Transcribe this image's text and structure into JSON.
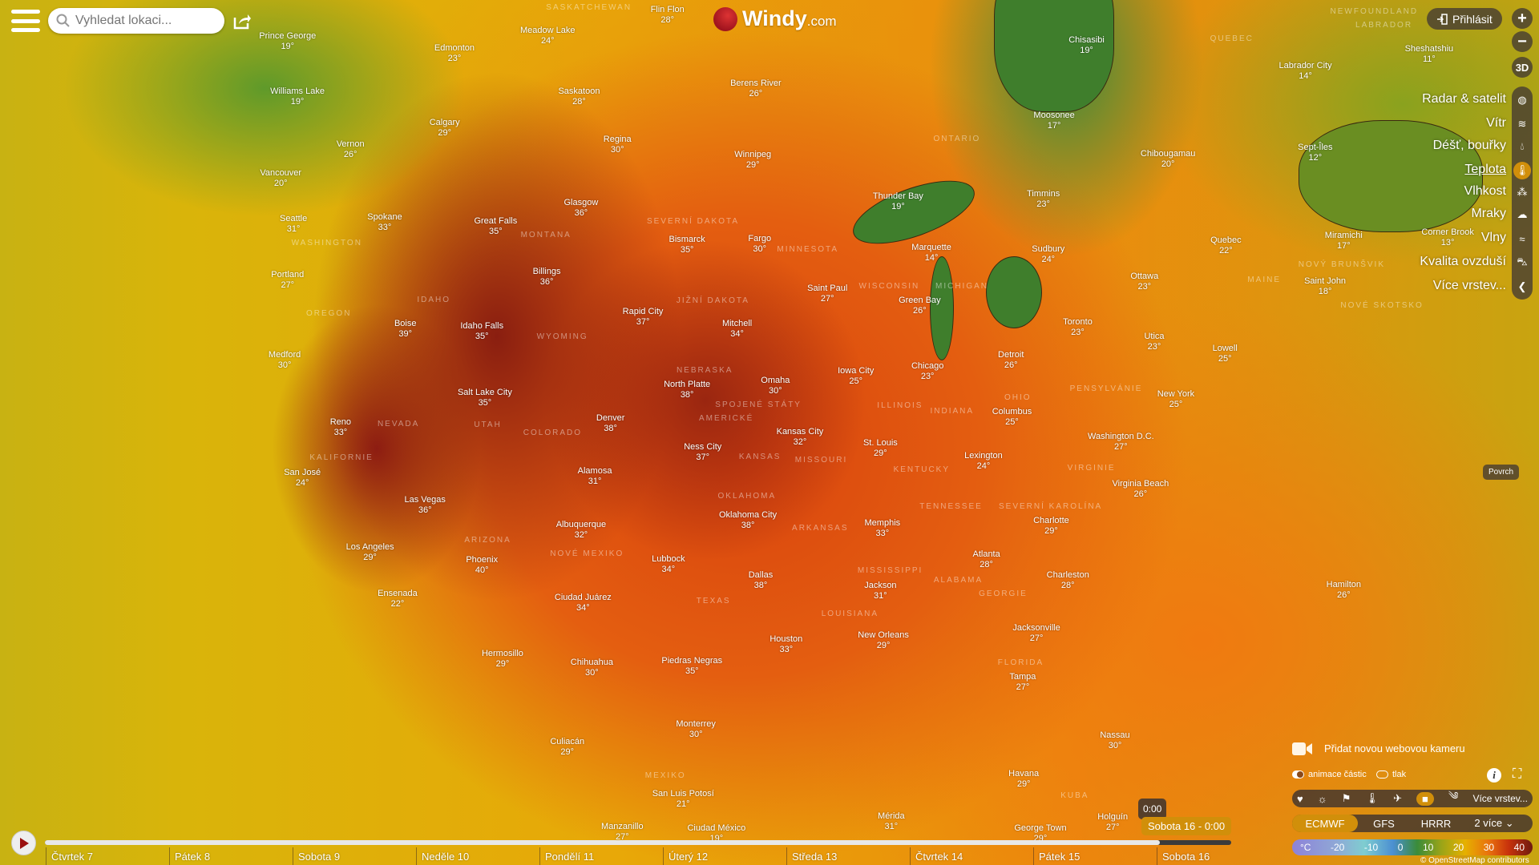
{
  "header": {
    "search_placeholder": "Vyhledat lokaci...",
    "logo_main": "Windy",
    "logo_suffix": ".com",
    "login_label": "Přihlásit"
  },
  "controls": {
    "zoom_in": "+",
    "zoom_out": "−",
    "three_d": "3D",
    "povrch": "Povrch"
  },
  "layers": [
    {
      "label": "Radar & satelit",
      "icon": "globe-icon"
    },
    {
      "label": "Vítr",
      "icon": "wind-icon"
    },
    {
      "label": "Déšť, bouřky",
      "icon": "drop-icon"
    },
    {
      "label": "Teplota",
      "icon": "thermometer-icon",
      "active": true
    },
    {
      "label": "Vlhkost",
      "icon": "humidity-icon"
    },
    {
      "label": "Mraky",
      "icon": "cloud-icon"
    },
    {
      "label": "Vlny",
      "icon": "waves-icon"
    },
    {
      "label": "Kvalita ovzduší",
      "icon": "car-icon"
    },
    {
      "label": "Více vrstev...",
      "icon": "chevron-left-icon"
    }
  ],
  "bottom_right": {
    "add_webcam": "Přidat novou webovou kameru",
    "toggle_particles": "animace částic",
    "toggle_pressure": "tlak",
    "more_layers": "Více vrstev...",
    "models": [
      "ECMWF",
      "GFS",
      "HRRR"
    ],
    "models_more": "2 více",
    "active_model": "ECMWF",
    "legend_unit": "°C",
    "legend_ticks": [
      "-20",
      "-10",
      "0",
      "10",
      "20",
      "30",
      "40"
    ],
    "credit": "© OpenStreetMap contributors"
  },
  "timeline": {
    "days": [
      "Čtvrtek 7",
      "Pátek 8",
      "Sobota 9",
      "Neděle 10",
      "Pondělí 11",
      "Úterý 12",
      "Středa 13",
      "Čtvrtek 14",
      "Pátek 15",
      "Sobota 16"
    ],
    "hour_tooltip": "0:00",
    "current_label": "Sobota 16 - 0:00",
    "progress_percent": 94
  },
  "colors": {
    "accent": "#d18f0a",
    "panel": "#463b32",
    "logo_red": "#a0141e"
  },
  "regions": [
    "SASKATCHEWAN",
    "ONTARIO",
    "QUEBEC",
    "NEWFOUNDLAND",
    "LABRADOR",
    "WASHINGTON",
    "MONTANA",
    "SEVERNÍ DAKOTA",
    "JIŽNÍ DAKOTA",
    "MINNESOTA",
    "WISCONSIN",
    "MICHIGAN",
    "IDAHO",
    "OREGON",
    "WYOMING",
    "NEBRASKA",
    "SPOJENÉ STÁTY",
    "AMERICKÉ",
    "NEVADA",
    "UTAH",
    "COLORADO",
    "KANSAS",
    "MISSOURI",
    "ILLINOIS",
    "INDIANA",
    "OHIO",
    "KALIFORNIE",
    "ARIZONA",
    "NOVÉ MEXIKO",
    "OKLAHOMA",
    "ARKANSAS",
    "TENNESSEE",
    "TEXAS",
    "LOUISIANA",
    "MISSISSIPPI",
    "ALABAMA",
    "GEORGIE",
    "FLORIDA",
    "MEXIKO",
    "KUBA",
    "PENSYLVÁNIE",
    "KENTUCKY",
    "VIRGINIE",
    "SEVERNÍ KAROLÍNA",
    "MAINE",
    "NOVÝ BRUNŠVIK",
    "NOVÉ SKOTSKO"
  ],
  "cities": [
    {
      "name": "Prince George",
      "temp": "19°"
    },
    {
      "name": "Edmonton",
      "temp": "23°"
    },
    {
      "name": "Meadow Lake",
      "temp": "24°"
    },
    {
      "name": "Flin Flon",
      "temp": "28°"
    },
    {
      "name": "Williams Lake",
      "temp": "19°"
    },
    {
      "name": "Saskatoon",
      "temp": "28°"
    },
    {
      "name": "Calgary",
      "temp": "29°"
    },
    {
      "name": "Regina",
      "temp": "30°"
    },
    {
      "name": "Vernon",
      "temp": "26°"
    },
    {
      "name": "Berens River",
      "temp": "26°"
    },
    {
      "name": "Winnipeg",
      "temp": "29°"
    },
    {
      "name": "Vancouver",
      "temp": "20°"
    },
    {
      "name": "Seattle",
      "temp": "31°"
    },
    {
      "name": "Spokane",
      "temp": "33°"
    },
    {
      "name": "Great Falls",
      "temp": "35°"
    },
    {
      "name": "Glasgow",
      "temp": "36°"
    },
    {
      "name": "Bismarck",
      "temp": "35°"
    },
    {
      "name": "Fargo",
      "temp": "30°"
    },
    {
      "name": "Thunder Bay",
      "temp": "19°"
    },
    {
      "name": "Marquette",
      "temp": "14°"
    },
    {
      "name": "Timmins",
      "temp": "23°"
    },
    {
      "name": "Sudbury",
      "temp": "24°"
    },
    {
      "name": "Ottawa",
      "temp": "23°"
    },
    {
      "name": "Chibougamau",
      "temp": "20°"
    },
    {
      "name": "Chisasibi",
      "temp": "19°"
    },
    {
      "name": "Moosonee",
      "temp": "17°"
    },
    {
      "name": "Labrador City",
      "temp": "14°"
    },
    {
      "name": "Sheshatshiu",
      "temp": "11°"
    },
    {
      "name": "Sept-Îles",
      "temp": "12°"
    },
    {
      "name": "Corner Brook",
      "temp": "13°"
    },
    {
      "name": "Miramichi",
      "temp": "17°"
    },
    {
      "name": "Saint John",
      "temp": "18°"
    },
    {
      "name": "Quebec",
      "temp": "22°"
    },
    {
      "name": "Portland",
      "temp": "27°"
    },
    {
      "name": "Billings",
      "temp": "36°"
    },
    {
      "name": "Rapid City",
      "temp": "37°"
    },
    {
      "name": "Mitchell",
      "temp": "34°"
    },
    {
      "name": "Saint Paul",
      "temp": "27°"
    },
    {
      "name": "Green Bay",
      "temp": "26°"
    },
    {
      "name": "Toronto",
      "temp": "23°"
    },
    {
      "name": "Utica",
      "temp": "23°"
    },
    {
      "name": "Lowell",
      "temp": "25°"
    },
    {
      "name": "Boise",
      "temp": "39°"
    },
    {
      "name": "Idaho Falls",
      "temp": "35°"
    },
    {
      "name": "Medford",
      "temp": "30°"
    },
    {
      "name": "Chicago",
      "temp": "23°"
    },
    {
      "name": "Detroit",
      "temp": "26°"
    },
    {
      "name": "Iowa City",
      "temp": "25°"
    },
    {
      "name": "North Platte",
      "temp": "38°"
    },
    {
      "name": "Omaha",
      "temp": "30°"
    },
    {
      "name": "New York",
      "temp": "25°"
    },
    {
      "name": "Salt Lake City",
      "temp": "35°"
    },
    {
      "name": "Reno",
      "temp": "33°"
    },
    {
      "name": "Denver",
      "temp": "38°"
    },
    {
      "name": "Kansas City",
      "temp": "32°"
    },
    {
      "name": "St. Louis",
      "temp": "29°"
    },
    {
      "name": "Columbus",
      "temp": "25°"
    },
    {
      "name": "Washington D.C.",
      "temp": "27°"
    },
    {
      "name": "Lexington",
      "temp": "24°"
    },
    {
      "name": "Ness City",
      "temp": "37°"
    },
    {
      "name": "Alamosa",
      "temp": "31°"
    },
    {
      "name": "San José",
      "temp": "24°"
    },
    {
      "name": "Las Vegas",
      "temp": "36°"
    },
    {
      "name": "Virginia Beach",
      "temp": "26°"
    },
    {
      "name": "Memphis",
      "temp": "33°"
    },
    {
      "name": "Oklahoma City",
      "temp": "38°"
    },
    {
      "name": "Albuquerque",
      "temp": "32°"
    },
    {
      "name": "Charlotte",
      "temp": "29°"
    },
    {
      "name": "Los Angeles",
      "temp": "29°"
    },
    {
      "name": "Phoenix",
      "temp": "40°"
    },
    {
      "name": "Lubbock",
      "temp": "34°"
    },
    {
      "name": "Atlanta",
      "temp": "28°"
    },
    {
      "name": "Charleston",
      "temp": "28°"
    },
    {
      "name": "Hamilton",
      "temp": "26°"
    },
    {
      "name": "Ensenada",
      "temp": "22°"
    },
    {
      "name": "Dallas",
      "temp": "38°"
    },
    {
      "name": "Jackson",
      "temp": "31°"
    },
    {
      "name": "Ciudad Juárez",
      "temp": "34°"
    },
    {
      "name": "Jacksonville",
      "temp": "27°"
    },
    {
      "name": "Houston",
      "temp": "33°"
    },
    {
      "name": "New Orleans",
      "temp": "29°"
    },
    {
      "name": "Hermosillo",
      "temp": "29°"
    },
    {
      "name": "Chihuahua",
      "temp": "30°"
    },
    {
      "name": "Piedras Negras",
      "temp": "35°"
    },
    {
      "name": "Tampa",
      "temp": "27°"
    },
    {
      "name": "Monterrey",
      "temp": "30°"
    },
    {
      "name": "Nassau",
      "temp": "30°"
    },
    {
      "name": "Culiacán",
      "temp": "29°"
    },
    {
      "name": "Havana",
      "temp": "29°"
    },
    {
      "name": "San Luis Potosí",
      "temp": "21°"
    },
    {
      "name": "Mérida",
      "temp": "31°"
    },
    {
      "name": "Holguín",
      "temp": "27°"
    },
    {
      "name": "Manzanillo",
      "temp": "27°"
    },
    {
      "name": "Ciudad México",
      "temp": "19°"
    },
    {
      "name": "George Town",
      "temp": "29°"
    }
  ]
}
